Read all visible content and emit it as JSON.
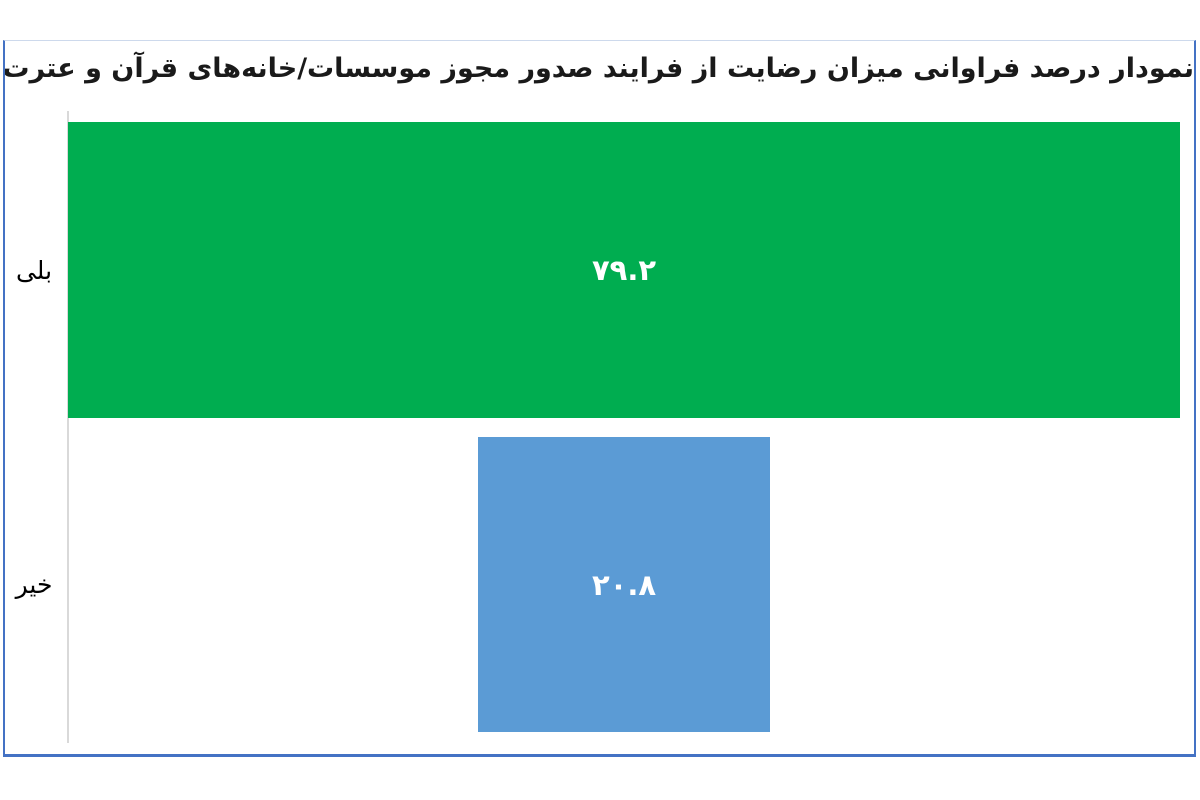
{
  "chart_data": {
    "type": "bar",
    "subtype": "horizontal-centered-funnel",
    "title": "نمودار درصد فراوانی میزان رضایت از فرایند صدور مجوز موسسات/خانه‌های قرآن و عترت",
    "direction": "rtl",
    "categories": [
      "بلی",
      "خیر"
    ],
    "values": [
      79.2,
      20.8
    ],
    "value_labels": [
      "۷۹.۲",
      "۲۰.۸"
    ],
    "xlim": [
      0,
      79.2
    ],
    "grid": false,
    "legend": "none",
    "bars_centered": true,
    "colors": {
      "bars": [
        "#00AD50",
        "#5B9BD5"
      ],
      "value_label": "#FFFFFF",
      "category_label": "#000000",
      "title_text": "#1A1A1A",
      "axis_line": "#D9D9D9",
      "frame_border": "#4472C4",
      "frame_border_top": "#CDD9EC",
      "background": "#FFFFFF"
    }
  }
}
